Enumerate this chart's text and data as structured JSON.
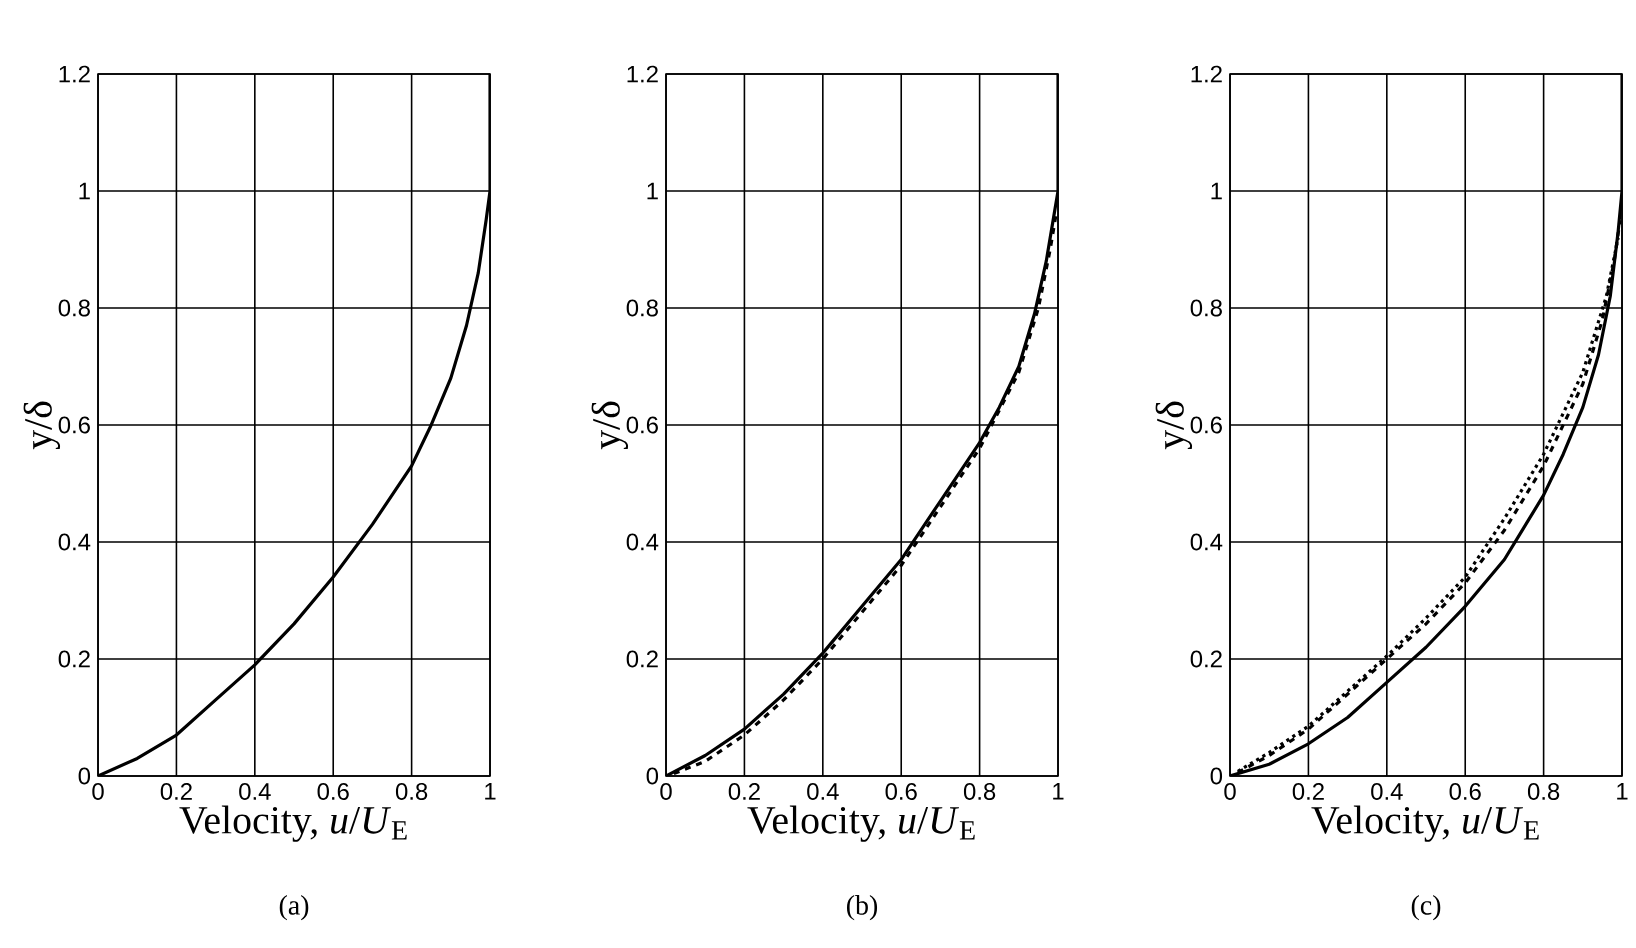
{
  "chart_data": [
    {
      "type": "line",
      "title": "(a)",
      "xlabel": "Velocity, *u*/*U*$_{E}$",
      "ylabel": "y/δ",
      "xlim": [
        0,
        1
      ],
      "ylim": [
        0,
        1.2
      ],
      "xticks": [
        0,
        0.2,
        0.4,
        0.6,
        0.8,
        1
      ],
      "yticks": [
        0,
        0.2,
        0.4,
        0.6,
        0.8,
        1,
        1.2
      ],
      "grid": true,
      "series": [
        {
          "color": "#000000",
          "line_style": "solid",
          "x": [
            0,
            0.1,
            0.2,
            0.3,
            0.4,
            0.5,
            0.6,
            0.7,
            0.8,
            0.85,
            0.9,
            0.94,
            0.97,
            0.99,
            1,
            1
          ],
          "values": [
            0,
            0.03,
            0.07,
            0.13,
            0.19,
            0.26,
            0.34,
            0.43,
            0.53,
            0.6,
            0.68,
            0.77,
            0.86,
            0.95,
            1,
            1.2
          ]
        }
      ]
    },
    {
      "type": "line",
      "title": "(b)",
      "xlabel": "Velocity, *u*/*U*$_{E}$",
      "ylabel": "y/δ",
      "xlim": [
        0,
        1
      ],
      "ylim": [
        0,
        1.2
      ],
      "xticks": [
        0,
        0.2,
        0.4,
        0.6,
        0.8,
        1
      ],
      "yticks": [
        0,
        0.2,
        0.4,
        0.6,
        0.8,
        1,
        1.2
      ],
      "grid": true,
      "series": [
        {
          "color": "#000000",
          "line_style": "solid",
          "x": [
            0,
            0.1,
            0.2,
            0.3,
            0.4,
            0.5,
            0.6,
            0.7,
            0.8,
            0.85,
            0.9,
            0.94,
            0.97,
            0.99,
            1,
            1
          ],
          "values": [
            0,
            0.035,
            0.08,
            0.14,
            0.21,
            0.29,
            0.37,
            0.47,
            0.57,
            0.63,
            0.7,
            0.79,
            0.88,
            0.96,
            1,
            1.2
          ]
        },
        {
          "color": "#000000",
          "line_style": "dashed",
          "x": [
            0.02,
            0.1,
            0.2,
            0.3,
            0.4,
            0.5,
            0.6,
            0.7,
            0.8,
            0.9,
            0.95,
            0.98,
            0.995
          ],
          "values": [
            0.004,
            0.025,
            0.07,
            0.13,
            0.2,
            0.28,
            0.36,
            0.46,
            0.56,
            0.69,
            0.8,
            0.9,
            0.96
          ]
        }
      ]
    },
    {
      "type": "line",
      "title": "(c)",
      "xlabel": "Velocity, *u*/*U*$_{E}$",
      "ylabel": "y/δ",
      "xlim": [
        0,
        1
      ],
      "ylim": [
        0,
        1.2
      ],
      "xticks": [
        0,
        0.2,
        0.4,
        0.6,
        0.8,
        1
      ],
      "yticks": [
        0,
        0.2,
        0.4,
        0.6,
        0.8,
        1,
        1.2
      ],
      "grid": true,
      "series": [
        {
          "color": "#000000",
          "line_style": "solid",
          "x": [
            0,
            0.1,
            0.2,
            0.3,
            0.4,
            0.5,
            0.6,
            0.7,
            0.8,
            0.85,
            0.9,
            0.94,
            0.97,
            0.99,
            1,
            1
          ],
          "values": [
            0,
            0.02,
            0.055,
            0.1,
            0.16,
            0.22,
            0.29,
            0.37,
            0.48,
            0.55,
            0.63,
            0.72,
            0.82,
            0.93,
            1,
            1.2
          ]
        },
        {
          "color": "#000000",
          "line_style": "dashed",
          "x": [
            0.02,
            0.1,
            0.2,
            0.3,
            0.4,
            0.5,
            0.6,
            0.7,
            0.8,
            0.9,
            0.95,
            0.98,
            0.995
          ],
          "values": [
            0.006,
            0.035,
            0.08,
            0.14,
            0.2,
            0.26,
            0.33,
            0.42,
            0.53,
            0.67,
            0.78,
            0.88,
            0.95
          ]
        },
        {
          "color": "#000000",
          "line_style": "dotted",
          "x": [
            0.02,
            0.1,
            0.2,
            0.3,
            0.4,
            0.5,
            0.6,
            0.7,
            0.8,
            0.9,
            0.96,
            0.99
          ],
          "values": [
            0.008,
            0.04,
            0.085,
            0.145,
            0.205,
            0.27,
            0.34,
            0.44,
            0.55,
            0.69,
            0.82,
            0.92
          ]
        }
      ]
    }
  ]
}
